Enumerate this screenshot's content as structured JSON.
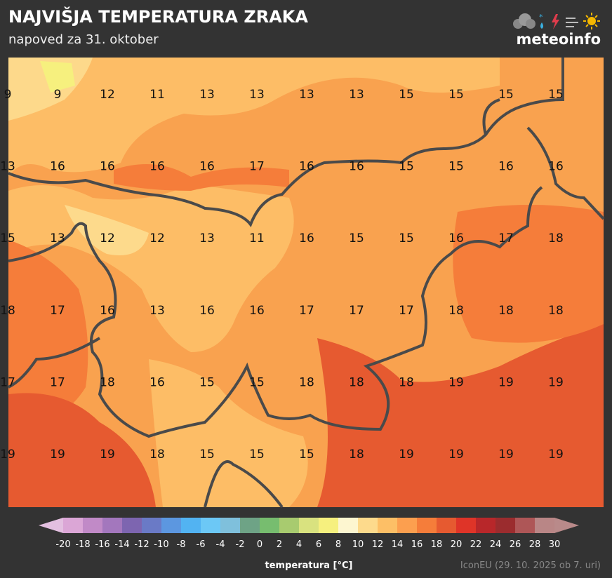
{
  "header": {
    "title": "NAJVIŠJA TEMPERATURA ZRAKA",
    "subtitle": "napoved za 31. oktober",
    "logo": "meteoinfo"
  },
  "grid": {
    "rows": [
      [
        9,
        9,
        12,
        11,
        13,
        13,
        13,
        13,
        15,
        15,
        15,
        15
      ],
      [
        13,
        16,
        16,
        16,
        16,
        17,
        16,
        16,
        15,
        15,
        16,
        16
      ],
      [
        15,
        13,
        12,
        12,
        13,
        11,
        16,
        15,
        15,
        16,
        17,
        18
      ],
      [
        18,
        17,
        16,
        13,
        16,
        16,
        17,
        17,
        17,
        18,
        18,
        18
      ],
      [
        17,
        17,
        18,
        16,
        15,
        15,
        18,
        18,
        18,
        19,
        19,
        19
      ],
      [
        19,
        19,
        19,
        18,
        15,
        15,
        15,
        18,
        19,
        19,
        19,
        19
      ]
    ]
  },
  "colorbar": {
    "ticks": [
      -20,
      -18,
      -16,
      -14,
      -12,
      -10,
      -8,
      -6,
      -4,
      -2,
      0,
      2,
      4,
      6,
      8,
      10,
      12,
      14,
      16,
      18,
      20,
      22,
      24,
      26,
      28,
      30
    ],
    "colors": [
      "#dba6d6",
      "#c18ac7",
      "#a377bd",
      "#7d65b0",
      "#6a7ac6",
      "#5c97e0",
      "#52b3f2",
      "#6cc8f6",
      "#7fc0dc",
      "#6ea386",
      "#77bd6f",
      "#a8cb6f",
      "#d9e27f",
      "#f6f07e",
      "#fdf6d0",
      "#fdda8c",
      "#fdbf66",
      "#fc9f4f",
      "#f57d3a",
      "#e65a30",
      "#df3428",
      "#b8272a",
      "#9b2c2e",
      "#ae5657",
      "#b98686"
    ],
    "under_color": "#e3bfe0",
    "over_color": "#b98a8a",
    "label": "temperatura [°C]",
    "source": "IconEU (29. 10. 2025 ob 7. uri)"
  }
}
